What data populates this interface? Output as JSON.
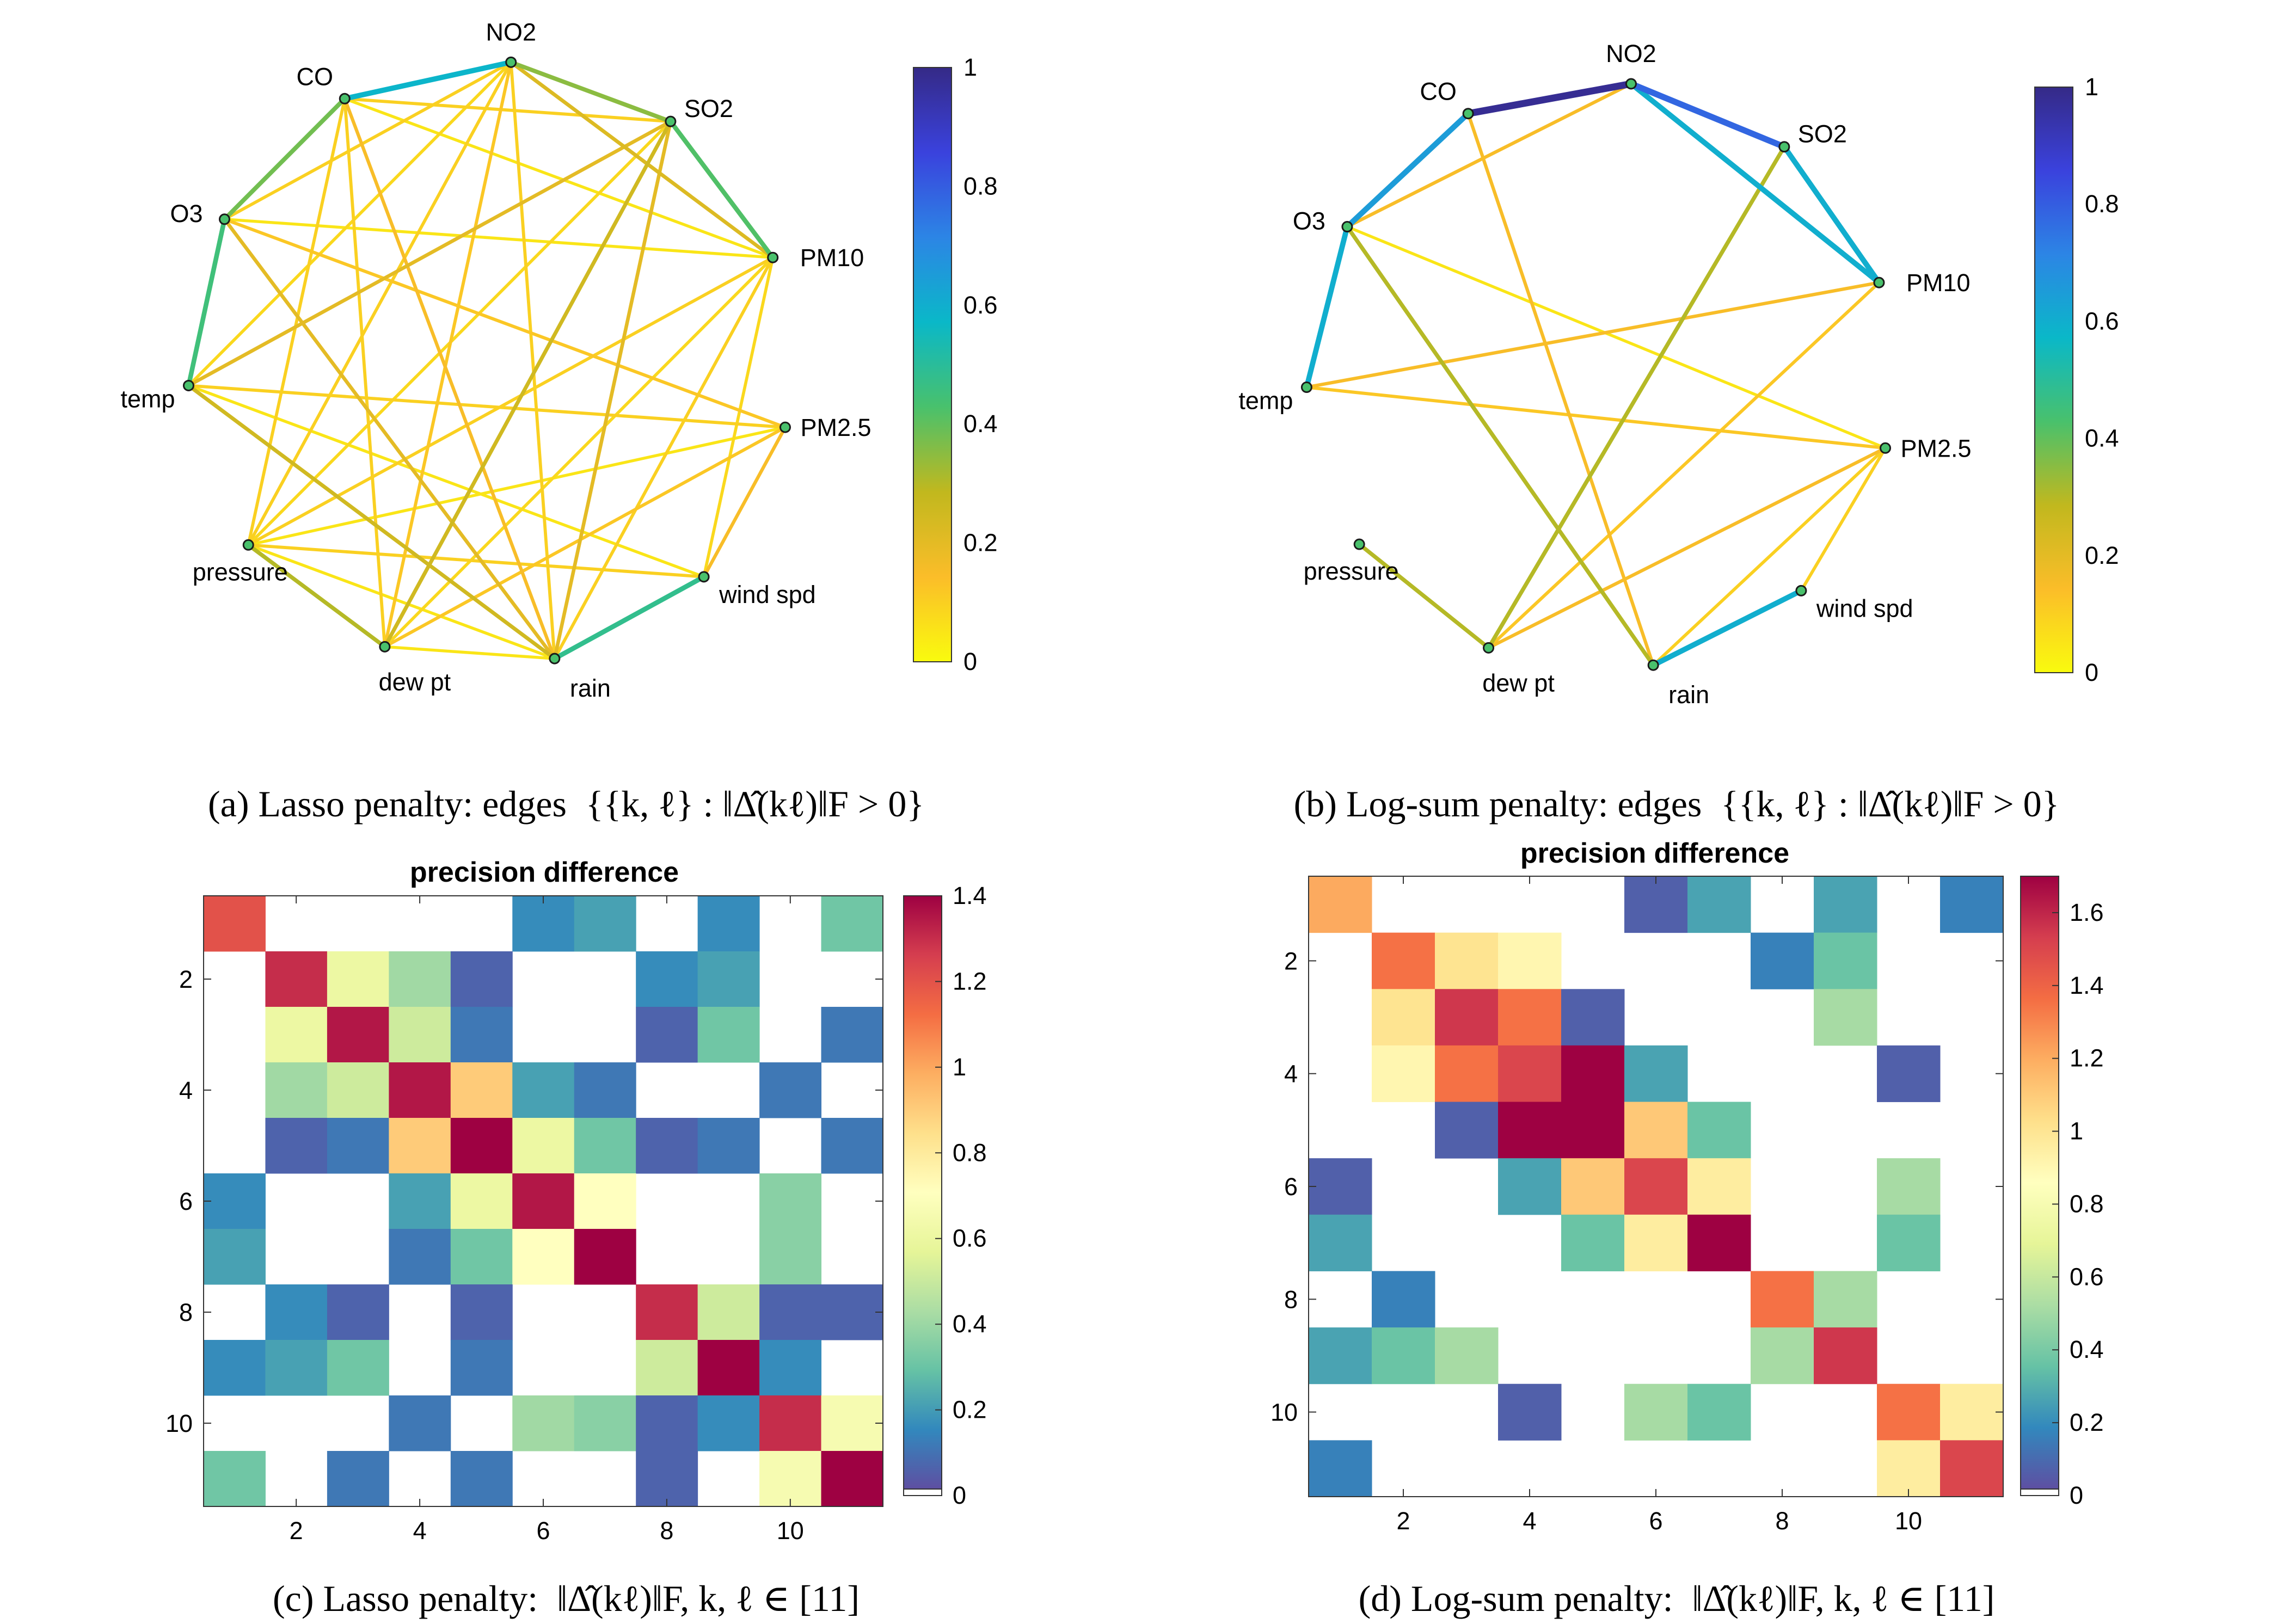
{
  "colors": {
    "parula": [
      "#f9fb0e",
      "#fbbd29",
      "#c1b81e",
      "#49c16c",
      "#0ab8c8",
      "#2c85e5",
      "#3a42dd",
      "#352a87"
    ],
    "spectral": [
      "#ffffff",
      "#5e4fa2",
      "#3288bd",
      "#66c2a5",
      "#abdda4",
      "#e6f598",
      "#ffffbf",
      "#fee08b",
      "#fdae61",
      "#f46d43",
      "#d53e4f",
      "#9e0142"
    ]
  },
  "chart_data": [
    {
      "type": "network",
      "caption_prefix": "(a) Lasso penalty: edges",
      "caption_math": "{{k, ℓ} : ‖Δ̂(kℓ)‖F > 0}",
      "nodes": [
        "NO2",
        "SO2",
        "PM10",
        "PM2.5",
        "wind spd",
        "rain",
        "dew pt",
        "pressure",
        "temp",
        "O3",
        "CO"
      ],
      "colorbar": {
        "range": [
          0,
          1
        ],
        "ticks": [
          "0",
          "0.2",
          "0.4",
          "0.6",
          "0.8",
          "1"
        ]
      },
      "edges": [
        [
          "CO",
          "NO2",
          0.58
        ],
        [
          "NO2",
          "SO2",
          0.35
        ],
        [
          "SO2",
          "PM10",
          0.42
        ],
        [
          "CO",
          "O3",
          0.38
        ],
        [
          "O3",
          "temp",
          0.45
        ],
        [
          "wind spd",
          "rain",
          0.48
        ],
        [
          "pressure",
          "dew pt",
          0.3
        ],
        [
          "NO2",
          "PM10",
          0.22
        ],
        [
          "NO2",
          "pressure",
          0.1
        ],
        [
          "NO2",
          "dew pt",
          0.12
        ],
        [
          "NO2",
          "rain",
          0.1
        ],
        [
          "NO2",
          "temp",
          0.08
        ],
        [
          "NO2",
          "O3",
          0.1
        ],
        [
          "SO2",
          "CO",
          0.1
        ],
        [
          "SO2",
          "temp",
          0.2
        ],
        [
          "SO2",
          "pressure",
          0.08
        ],
        [
          "SO2",
          "dew pt",
          0.25
        ],
        [
          "SO2",
          "rain",
          0.2
        ],
        [
          "CO",
          "PM10",
          0.05
        ],
        [
          "CO",
          "dew pt",
          0.1
        ],
        [
          "CO",
          "pressure",
          0.1
        ],
        [
          "CO",
          "rain",
          0.15
        ],
        [
          "PM10",
          "O3",
          0.05
        ],
        [
          "PM10",
          "dew pt",
          0.08
        ],
        [
          "PM10",
          "rain",
          0.1
        ],
        [
          "PM10",
          "pressure",
          0.1
        ],
        [
          "PM10",
          "wind spd",
          0.08
        ],
        [
          "O3",
          "PM2.5",
          0.12
        ],
        [
          "O3",
          "rain",
          0.2
        ],
        [
          "temp",
          "PM2.5",
          0.1
        ],
        [
          "temp",
          "rain",
          0.25
        ],
        [
          "temp",
          "wind spd",
          0.05
        ],
        [
          "PM2.5",
          "dew pt",
          0.12
        ],
        [
          "PM2.5",
          "wind spd",
          0.15
        ],
        [
          "PM2.5",
          "pressure",
          0.05
        ],
        [
          "pressure",
          "rain",
          0.05
        ],
        [
          "dew pt",
          "rain",
          0.05
        ],
        [
          "wind spd",
          "pressure",
          0.1
        ]
      ]
    },
    {
      "type": "network",
      "caption_prefix": "(b) Log-sum penalty: edges",
      "caption_math": "{{k, ℓ} : ‖Δ̂(kℓ)‖F > 0}",
      "nodes": [
        "NO2",
        "SO2",
        "PM10",
        "PM2.5",
        "wind spd",
        "rain",
        "dew pt",
        "pressure",
        "temp",
        "O3",
        "CO"
      ],
      "colorbar": {
        "range": [
          0,
          1
        ],
        "ticks": [
          "0",
          "0.2",
          "0.4",
          "0.6",
          "0.8",
          "1"
        ]
      },
      "edges": [
        [
          "CO",
          "NO2",
          0.98
        ],
        [
          "NO2",
          "SO2",
          0.78
        ],
        [
          "SO2",
          "PM10",
          0.6
        ],
        [
          "NO2",
          "PM10",
          0.6
        ],
        [
          "CO",
          "O3",
          0.65
        ],
        [
          "O3",
          "temp",
          0.6
        ],
        [
          "wind spd",
          "rain",
          0.6
        ],
        [
          "NO2",
          "O3",
          0.15
        ],
        [
          "SO2",
          "dew pt",
          0.3
        ],
        [
          "PM10",
          "temp",
          0.15
        ],
        [
          "PM10",
          "dew pt",
          0.12
        ],
        [
          "O3",
          "PM2.5",
          0.05
        ],
        [
          "O3",
          "rain",
          0.3
        ],
        [
          "temp",
          "PM2.5",
          0.12
        ],
        [
          "PM2.5",
          "dew pt",
          0.15
        ],
        [
          "PM2.5",
          "rain",
          0.1
        ],
        [
          "pressure",
          "dew pt",
          0.3
        ],
        [
          "CO",
          "rain",
          0.15
        ],
        [
          "PM2.5",
          "wind spd",
          0.1
        ]
      ]
    },
    {
      "type": "heatmap",
      "title": "precision difference",
      "caption_prefix": "(c) Lasso penalty:",
      "caption_math": "‖Δ̂(kℓ)‖F, k, ℓ ∈ [11]",
      "size": 11,
      "xticks": [
        "2",
        "4",
        "6",
        "8",
        "10"
      ],
      "yticks": [
        "2",
        "4",
        "6",
        "8",
        "10"
      ],
      "colorbar": {
        "range": [
          0,
          1.4
        ],
        "ticks": [
          "0",
          "0.2",
          "0.4",
          "0.6",
          "0.8",
          "1",
          "1.2",
          "1.4"
        ]
      },
      "values": [
        [
          1.2,
          0,
          0,
          0,
          0,
          0.15,
          0.2,
          0,
          0.15,
          0,
          0.3
        ],
        [
          0,
          1.3,
          0.6,
          0.4,
          0.05,
          0,
          0,
          0.15,
          0.2,
          0,
          0
        ],
        [
          0,
          0.6,
          1.35,
          0.5,
          0.1,
          0,
          0,
          0.05,
          0.3,
          0,
          0.1
        ],
        [
          0,
          0.4,
          0.5,
          1.35,
          0.9,
          0.2,
          0.1,
          0,
          0,
          0.1,
          0
        ],
        [
          0,
          0.05,
          0.1,
          0.9,
          1.4,
          0.6,
          0.3,
          0.05,
          0.1,
          0,
          0.1
        ],
        [
          0.15,
          0,
          0,
          0.2,
          0.6,
          1.35,
          0.7,
          0,
          0,
          0.35,
          0
        ],
        [
          0.2,
          0,
          0,
          0.1,
          0.3,
          0.7,
          1.4,
          0,
          0,
          0.35,
          0
        ],
        [
          0,
          0.15,
          0.05,
          0,
          0.05,
          0,
          0,
          1.3,
          0.5,
          0.05,
          0.05
        ],
        [
          0.15,
          0.2,
          0.3,
          0,
          0.1,
          0,
          0,
          0.5,
          1.4,
          0.15,
          0
        ],
        [
          0,
          0,
          0,
          0.1,
          0,
          0.4,
          0.35,
          0.05,
          0.15,
          1.3,
          0.65
        ],
        [
          0.3,
          0,
          0.1,
          0,
          0.1,
          0,
          0,
          0.05,
          0,
          0.65,
          1.4
        ]
      ]
    },
    {
      "type": "heatmap",
      "title": "precision difference",
      "caption_prefix": "(d) Log-sum penalty:",
      "caption_math": "‖Δ̂(kℓ)‖F, k, ℓ ∈ [11]",
      "size": 11,
      "xticks": [
        "2",
        "4",
        "6",
        "8",
        "10"
      ],
      "yticks": [
        "2",
        "4",
        "6",
        "8",
        "10"
      ],
      "colorbar": {
        "range": [
          0,
          1.7
        ],
        "ticks": [
          "0",
          "0.2",
          "0.4",
          "0.6",
          "0.8",
          "1",
          "1.2",
          "1.4",
          "1.6"
        ]
      },
      "values": [
        [
          1.2,
          0,
          0,
          0,
          0,
          0.05,
          0.25,
          0,
          0.25,
          0,
          0.15
        ],
        [
          0,
          1.35,
          1.0,
          0.9,
          0,
          0,
          0,
          0.15,
          0.35,
          0,
          0
        ],
        [
          0,
          1.0,
          1.55,
          1.35,
          0.05,
          0,
          0,
          0,
          0.5,
          0,
          0
        ],
        [
          0,
          0.9,
          1.35,
          1.5,
          1.7,
          0.25,
          0,
          0,
          0,
          0.05,
          0
        ],
        [
          0,
          0,
          0.05,
          1.7,
          1.7,
          1.1,
          0.35,
          0,
          0,
          0,
          0
        ],
        [
          0.05,
          0,
          0,
          0.25,
          1.1,
          1.5,
          0.95,
          0,
          0,
          0.5,
          0
        ],
        [
          0.25,
          0,
          0,
          0,
          0.35,
          0.95,
          1.7,
          0,
          0,
          0.35,
          0
        ],
        [
          0,
          0.15,
          0,
          0,
          0,
          0,
          0,
          1.35,
          0.5,
          0,
          0
        ],
        [
          0.25,
          0.35,
          0.5,
          0,
          0,
          0,
          0,
          0.5,
          1.55,
          0,
          0
        ],
        [
          0,
          0,
          0,
          0.05,
          0,
          0.5,
          0.35,
          0,
          0,
          1.35,
          0.95
        ],
        [
          0.15,
          0,
          0,
          0,
          0,
          0,
          0,
          0,
          0,
          0.95,
          1.5
        ]
      ]
    }
  ]
}
